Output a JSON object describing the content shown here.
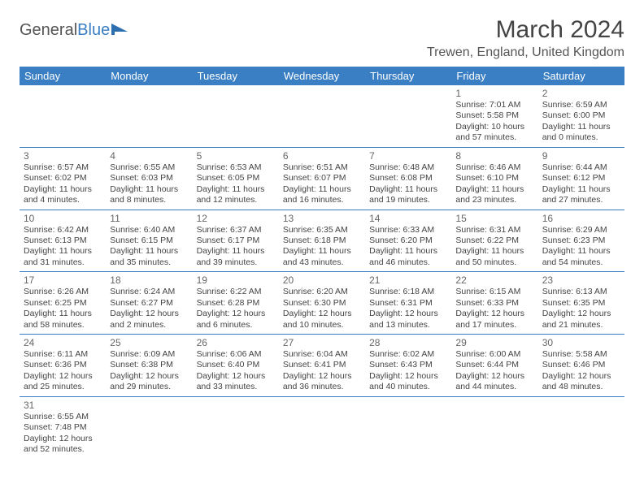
{
  "logo": {
    "text1": "General",
    "text2": "Blue"
  },
  "title": "March 2024",
  "location": "Trewen, England, United Kingdom",
  "colors": {
    "header_bg": "#3a7fc4",
    "header_text": "#ffffff",
    "border": "#3a7fc4",
    "text": "#444444",
    "daynum": "#666666"
  },
  "weekdays": [
    "Sunday",
    "Monday",
    "Tuesday",
    "Wednesday",
    "Thursday",
    "Friday",
    "Saturday"
  ],
  "first_day_index": 5,
  "days": [
    {
      "n": 1,
      "sunrise": "7:01 AM",
      "sunset": "5:58 PM",
      "daylight": "10 hours and 57 minutes."
    },
    {
      "n": 2,
      "sunrise": "6:59 AM",
      "sunset": "6:00 PM",
      "daylight": "11 hours and 0 minutes."
    },
    {
      "n": 3,
      "sunrise": "6:57 AM",
      "sunset": "6:02 PM",
      "daylight": "11 hours and 4 minutes."
    },
    {
      "n": 4,
      "sunrise": "6:55 AM",
      "sunset": "6:03 PM",
      "daylight": "11 hours and 8 minutes."
    },
    {
      "n": 5,
      "sunrise": "6:53 AM",
      "sunset": "6:05 PM",
      "daylight": "11 hours and 12 minutes."
    },
    {
      "n": 6,
      "sunrise": "6:51 AM",
      "sunset": "6:07 PM",
      "daylight": "11 hours and 16 minutes."
    },
    {
      "n": 7,
      "sunrise": "6:48 AM",
      "sunset": "6:08 PM",
      "daylight": "11 hours and 19 minutes."
    },
    {
      "n": 8,
      "sunrise": "6:46 AM",
      "sunset": "6:10 PM",
      "daylight": "11 hours and 23 minutes."
    },
    {
      "n": 9,
      "sunrise": "6:44 AM",
      "sunset": "6:12 PM",
      "daylight": "11 hours and 27 minutes."
    },
    {
      "n": 10,
      "sunrise": "6:42 AM",
      "sunset": "6:13 PM",
      "daylight": "11 hours and 31 minutes."
    },
    {
      "n": 11,
      "sunrise": "6:40 AM",
      "sunset": "6:15 PM",
      "daylight": "11 hours and 35 minutes."
    },
    {
      "n": 12,
      "sunrise": "6:37 AM",
      "sunset": "6:17 PM",
      "daylight": "11 hours and 39 minutes."
    },
    {
      "n": 13,
      "sunrise": "6:35 AM",
      "sunset": "6:18 PM",
      "daylight": "11 hours and 43 minutes."
    },
    {
      "n": 14,
      "sunrise": "6:33 AM",
      "sunset": "6:20 PM",
      "daylight": "11 hours and 46 minutes."
    },
    {
      "n": 15,
      "sunrise": "6:31 AM",
      "sunset": "6:22 PM",
      "daylight": "11 hours and 50 minutes."
    },
    {
      "n": 16,
      "sunrise": "6:29 AM",
      "sunset": "6:23 PM",
      "daylight": "11 hours and 54 minutes."
    },
    {
      "n": 17,
      "sunrise": "6:26 AM",
      "sunset": "6:25 PM",
      "daylight": "11 hours and 58 minutes."
    },
    {
      "n": 18,
      "sunrise": "6:24 AM",
      "sunset": "6:27 PM",
      "daylight": "12 hours and 2 minutes."
    },
    {
      "n": 19,
      "sunrise": "6:22 AM",
      "sunset": "6:28 PM",
      "daylight": "12 hours and 6 minutes."
    },
    {
      "n": 20,
      "sunrise": "6:20 AM",
      "sunset": "6:30 PM",
      "daylight": "12 hours and 10 minutes."
    },
    {
      "n": 21,
      "sunrise": "6:18 AM",
      "sunset": "6:31 PM",
      "daylight": "12 hours and 13 minutes."
    },
    {
      "n": 22,
      "sunrise": "6:15 AM",
      "sunset": "6:33 PM",
      "daylight": "12 hours and 17 minutes."
    },
    {
      "n": 23,
      "sunrise": "6:13 AM",
      "sunset": "6:35 PM",
      "daylight": "12 hours and 21 minutes."
    },
    {
      "n": 24,
      "sunrise": "6:11 AM",
      "sunset": "6:36 PM",
      "daylight": "12 hours and 25 minutes."
    },
    {
      "n": 25,
      "sunrise": "6:09 AM",
      "sunset": "6:38 PM",
      "daylight": "12 hours and 29 minutes."
    },
    {
      "n": 26,
      "sunrise": "6:06 AM",
      "sunset": "6:40 PM",
      "daylight": "12 hours and 33 minutes."
    },
    {
      "n": 27,
      "sunrise": "6:04 AM",
      "sunset": "6:41 PM",
      "daylight": "12 hours and 36 minutes."
    },
    {
      "n": 28,
      "sunrise": "6:02 AM",
      "sunset": "6:43 PM",
      "daylight": "12 hours and 40 minutes."
    },
    {
      "n": 29,
      "sunrise": "6:00 AM",
      "sunset": "6:44 PM",
      "daylight": "12 hours and 44 minutes."
    },
    {
      "n": 30,
      "sunrise": "5:58 AM",
      "sunset": "6:46 PM",
      "daylight": "12 hours and 48 minutes."
    },
    {
      "n": 31,
      "sunrise": "6:55 AM",
      "sunset": "7:48 PM",
      "daylight": "12 hours and 52 minutes."
    }
  ],
  "labels": {
    "sunrise": "Sunrise:",
    "sunset": "Sunset:",
    "daylight": "Daylight:"
  }
}
